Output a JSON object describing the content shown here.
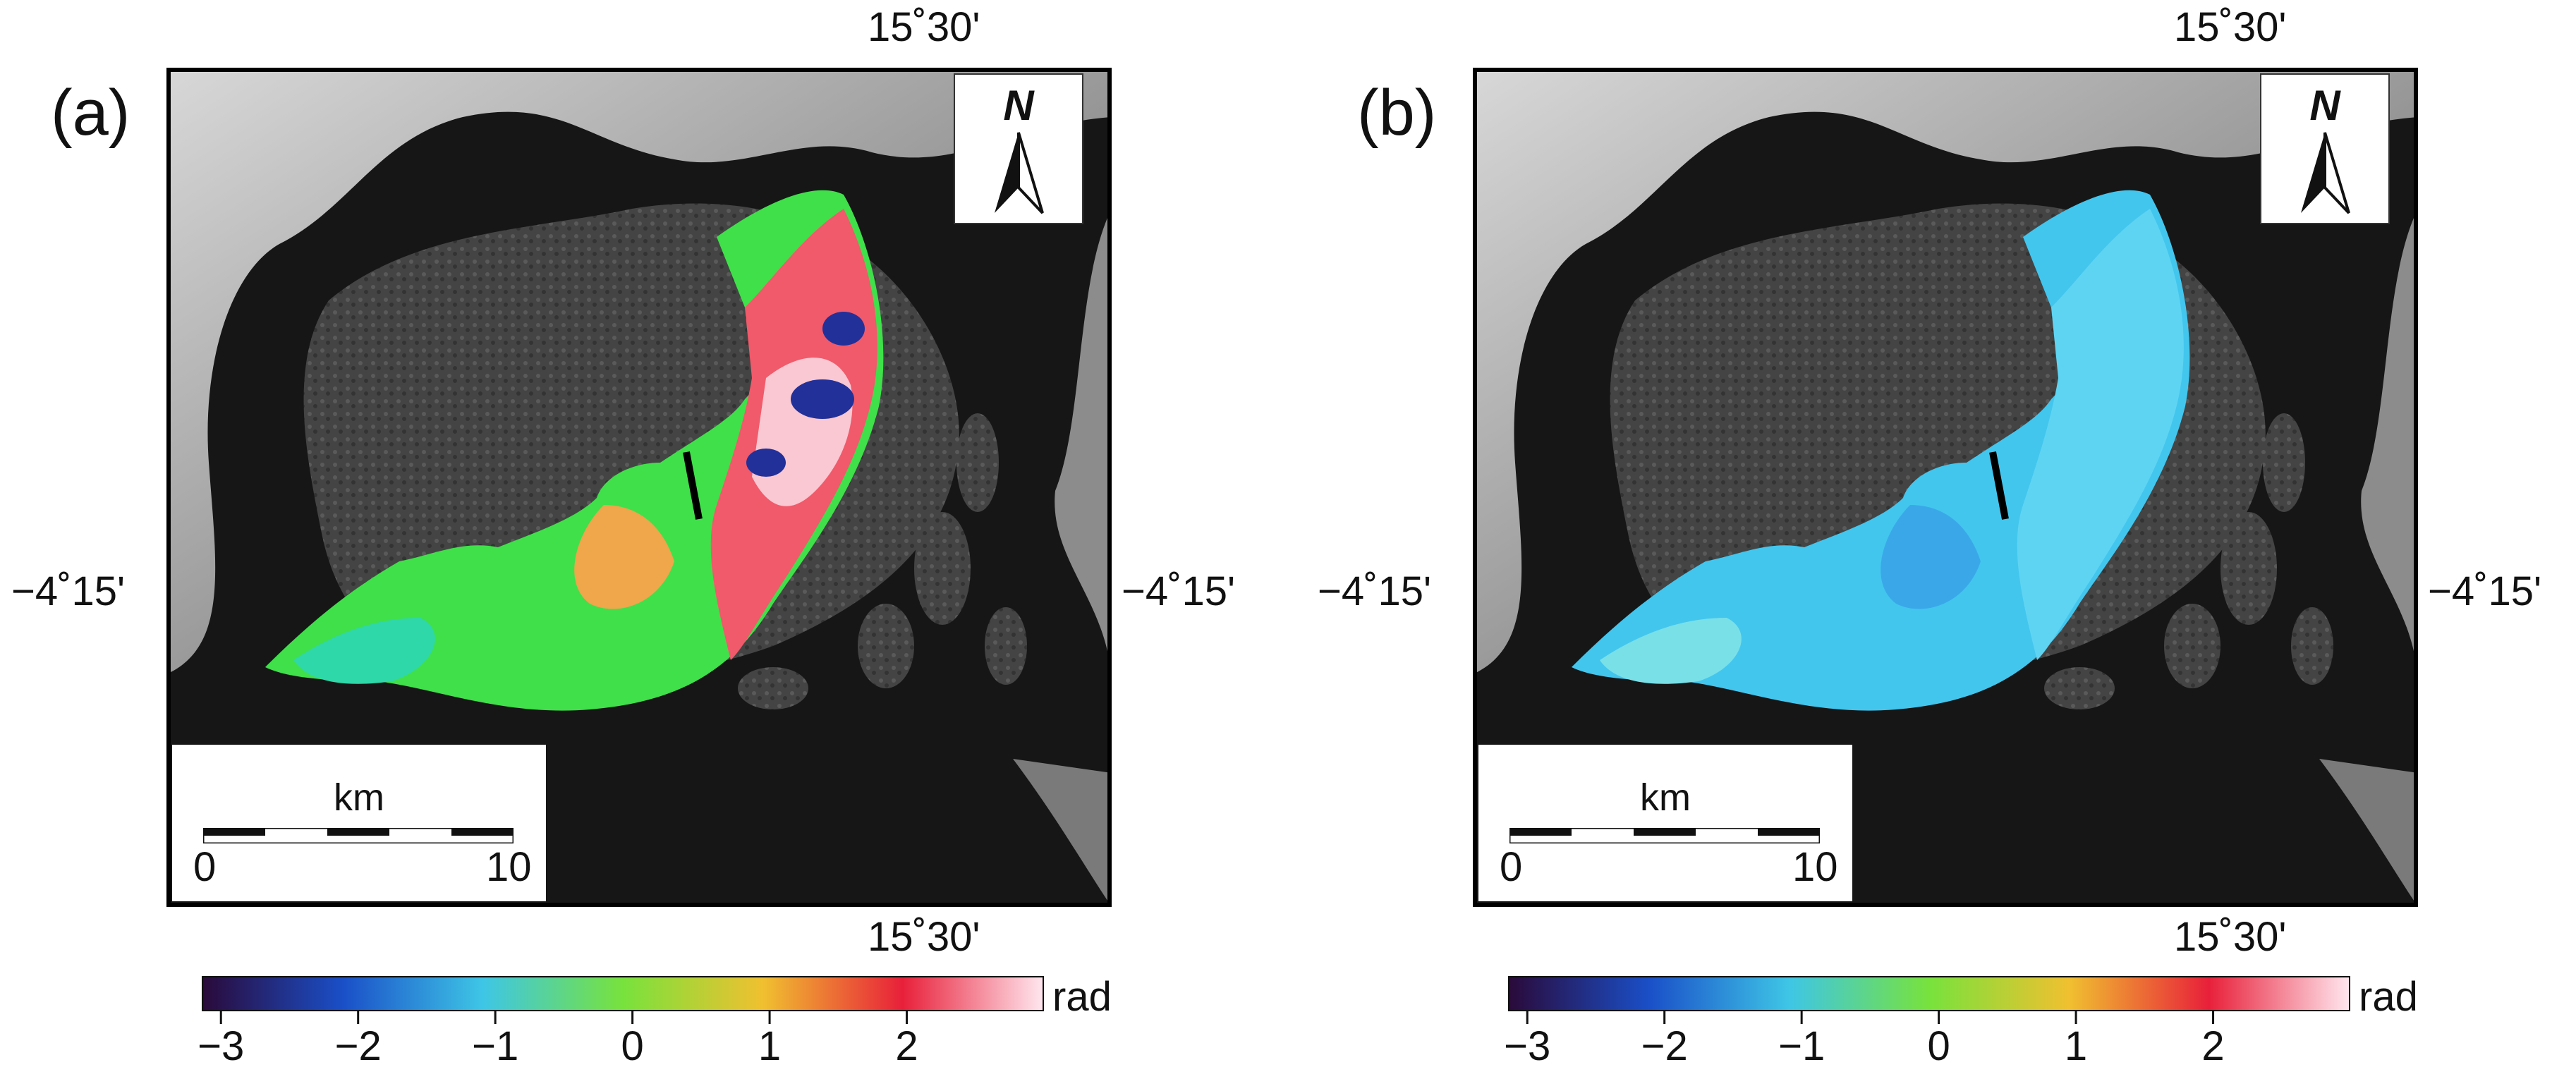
{
  "panels": [
    {
      "id": "a",
      "label": "(a)",
      "lon_label": "15˚30'",
      "lat_label": "−4˚15'",
      "north_label": "N",
      "scale": {
        "unit": "km",
        "min": "0",
        "max": "10"
      },
      "colorbar": {
        "unit": "rad",
        "ticks": [
          "−3",
          "−2",
          "−1",
          "0",
          "1",
          "2"
        ],
        "tick_values": [
          -3,
          -2,
          -1,
          0,
          1,
          2
        ],
        "range": [
          -3.14,
          3.0
        ],
        "colors": [
          "#2a0a3a",
          "#1a4fc8",
          "#3ec6e6",
          "#78e23c",
          "#f0c030",
          "#e8203a",
          "#ffe6ee"
        ]
      },
      "phase_colors": [
        "#3fe04a",
        "#66e83a",
        "#2fd8a8",
        "#f05a6a",
        "#ff9aa6",
        "#f9c8d2",
        "#22309a"
      ]
    },
    {
      "id": "b",
      "label": "(b)",
      "lon_label": "15˚30'",
      "lat_label": "−4˚15'",
      "north_label": "N",
      "scale": {
        "unit": "km",
        "min": "0",
        "max": "10"
      },
      "colorbar": {
        "unit": "rad",
        "ticks": [
          "−3",
          "−2",
          "−1",
          "0",
          "1",
          "2"
        ],
        "tick_values": [
          -3,
          -2,
          -1,
          0,
          1,
          2
        ],
        "range": [
          -3.14,
          3.0
        ],
        "colors": [
          "#2a0a3a",
          "#1a4fc8",
          "#3ec6e6",
          "#78e23c",
          "#f0c030",
          "#e8203a",
          "#ffe6ee"
        ]
      },
      "phase_colors": [
        "#42c6ee",
        "#5fd4f2",
        "#3aa8e8",
        "#7ae0e8"
      ]
    }
  ]
}
